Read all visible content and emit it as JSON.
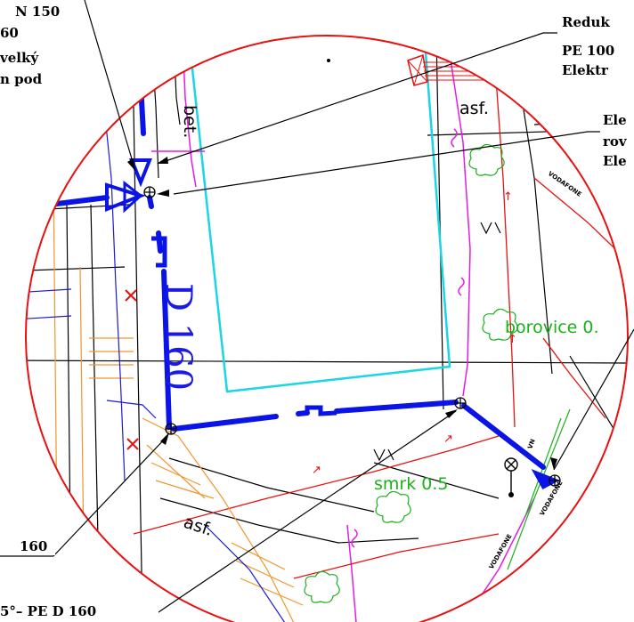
{
  "callouts": {
    "top_left": [
      "N 150",
      "60",
      "velký",
      "n pod"
    ],
    "top_right": [
      "Reduk",
      "PE 100",
      "Elektr"
    ],
    "right_mid": [
      "Ele",
      "rov",
      "Ele"
    ],
    "bottom_left": "160",
    "bottom": "5°– PE D 160"
  },
  "labels": {
    "pipe": "D 160",
    "bet": "bet.",
    "asf_top": "asf.",
    "asf_bottom": "asf.",
    "borovice": "borovice 0.",
    "smrk": "smrk 0.5",
    "vodafone_a": "VODAFONE",
    "vodafone_b": "VODAFONE",
    "vodafone_c": "VODAFONE",
    "vn": "VN"
  },
  "colors": {
    "water_main": "#0a14e6",
    "circle": "#e81010",
    "cyan": "#1ad5e6",
    "magenta": "#e61ae6",
    "orange": "#f0962d",
    "green": "#1ab01a",
    "blue_thin": "#1a1ad2",
    "red": "#e81010"
  }
}
